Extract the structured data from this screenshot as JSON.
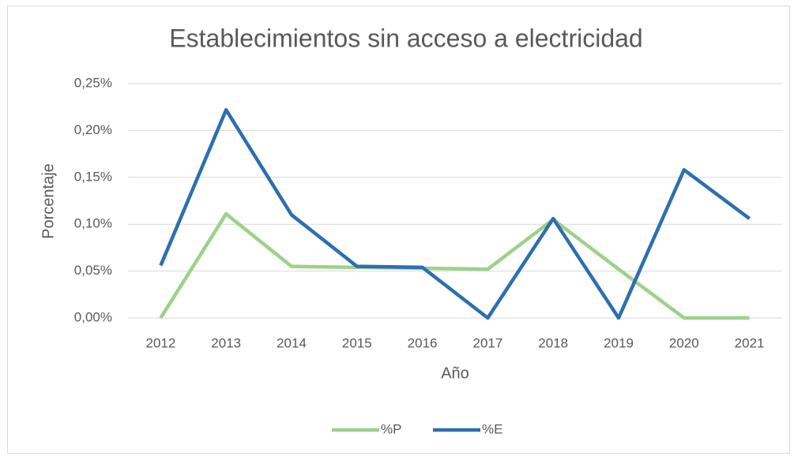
{
  "chart_data": {
    "type": "line",
    "title": "Establecimientos sin acceso a electricidad",
    "x_label": "Año",
    "y_label": "Porcentaje",
    "categories": [
      "2012",
      "2013",
      "2014",
      "2015",
      "2016",
      "2017",
      "2018",
      "2019",
      "2020",
      "2021"
    ],
    "series": [
      {
        "name": "%P",
        "color": "#9dd18a",
        "values": [
          0,
          0.111,
          0.055,
          0.054,
          0.053,
          0.052,
          0.105,
          0.052,
          0,
          0
        ]
      },
      {
        "name": "%E",
        "color": "#2e6fad",
        "values": [
          0.056,
          0.222,
          0.11,
          0.055,
          0.054,
          0,
          0.106,
          0,
          0.158,
          0.106
        ]
      }
    ],
    "ylim": [
      0,
      0.25
    ],
    "yticks": [
      {
        "value": 0,
        "label": "0,00%"
      },
      {
        "value": 0.05,
        "label": "0,05%"
      },
      {
        "value": 0.1,
        "label": "0,10%"
      },
      {
        "value": 0.15,
        "label": "0,15%"
      },
      {
        "value": 0.2,
        "label": "0,20%"
      },
      {
        "value": 0.25,
        "label": "0,25%"
      }
    ],
    "grid": true,
    "legend": "bottom"
  }
}
